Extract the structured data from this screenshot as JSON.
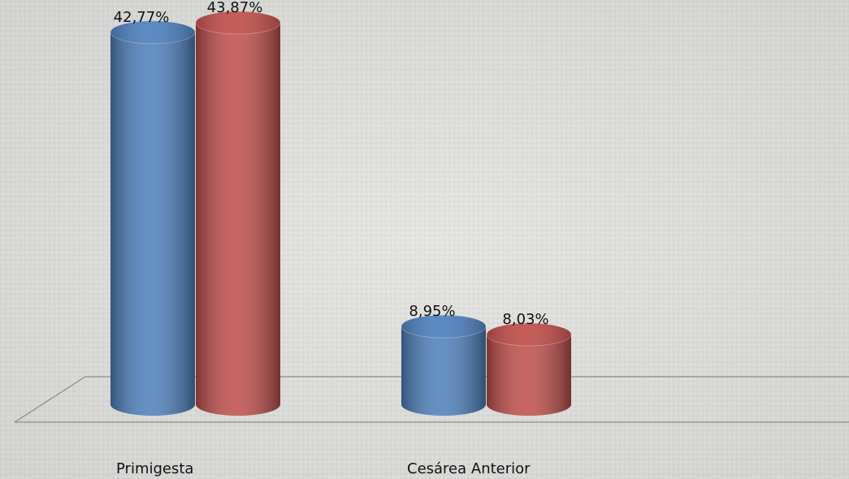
{
  "chart_data": {
    "type": "bar3d",
    "categories": [
      "Primigesta",
      "Cesárea Anterior"
    ],
    "series": [
      {
        "color": "#4f81bd",
        "values": [
          42.77,
          8.95
        ],
        "value_labels": [
          "42,77%",
          "8,95%"
        ]
      },
      {
        "color": "#c0504d",
        "values": [
          43.87,
          8.03
        ],
        "value_labels": [
          "43,87%",
          "8,03%"
        ]
      }
    ]
  }
}
